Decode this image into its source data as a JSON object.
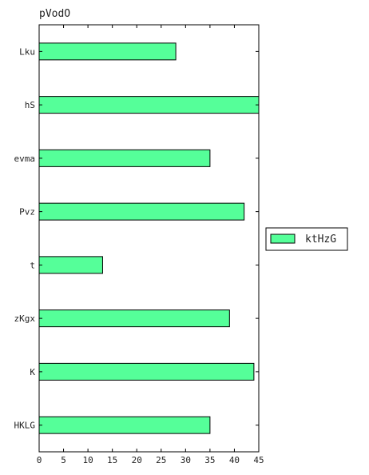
{
  "chart_data": {
    "type": "bar",
    "orientation": "horizontal",
    "title": "pVodO",
    "xlabel": "",
    "ylabel": "",
    "categories": [
      "Lku",
      "hS",
      "evma",
      "Pvz",
      "t",
      "zKgx",
      "K",
      "HKLG"
    ],
    "series": [
      {
        "name": "ktHzG",
        "color": "#55ff99",
        "values": [
          28,
          45,
          35,
          42,
          13,
          39,
          44,
          35
        ]
      }
    ],
    "xlim": [
      0,
      45
    ],
    "xticks": [
      0,
      5,
      10,
      15,
      20,
      25,
      30,
      35,
      40,
      45
    ],
    "grid": false,
    "legend_position": "right"
  }
}
